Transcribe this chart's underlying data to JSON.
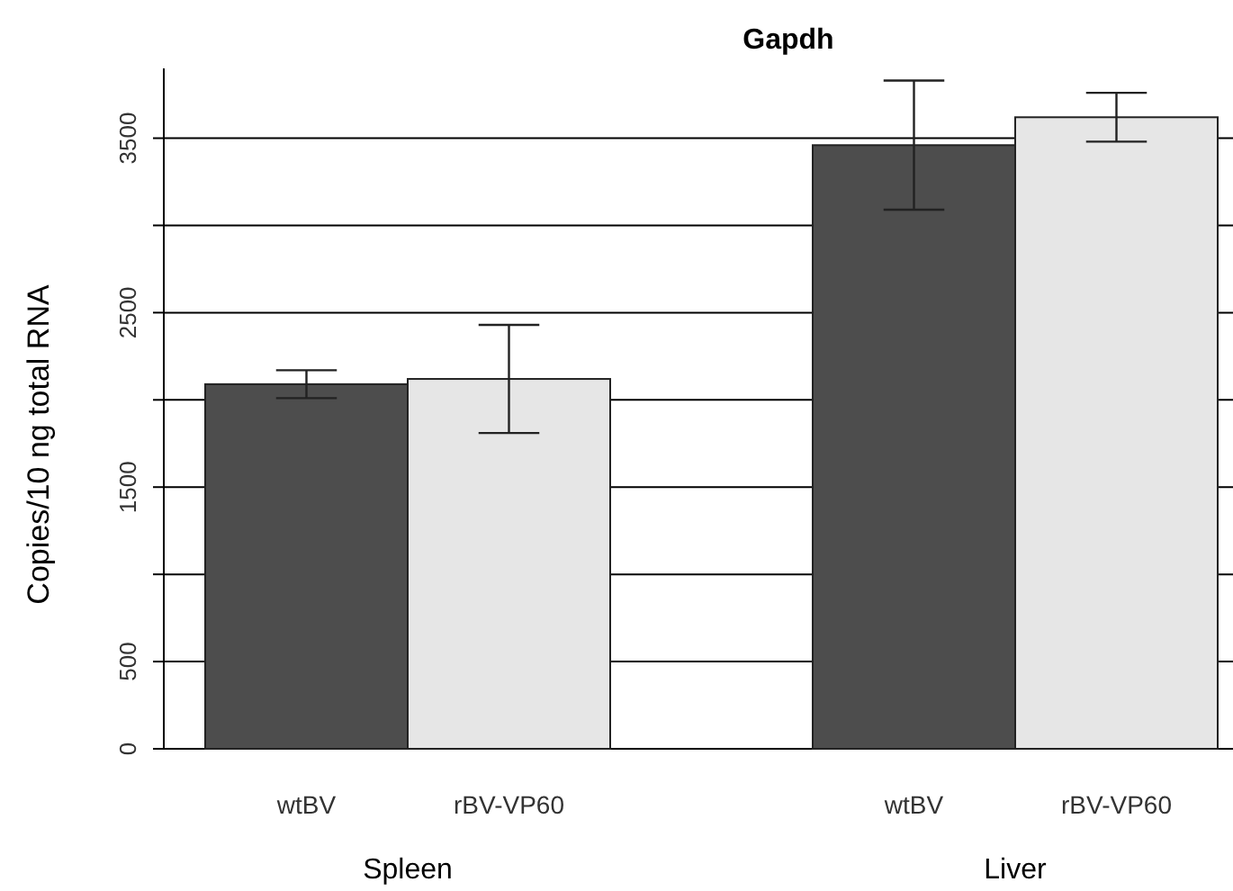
{
  "chart_data": {
    "type": "bar",
    "title": "Gapdh",
    "ylabel": "Copies/10 ng total RNA",
    "categories": [
      "wtBV",
      "rBV-VP60",
      null,
      "wtBV",
      "rBV-VP60"
    ],
    "values": [
      2090,
      2120,
      null,
      3460,
      3620
    ],
    "colors": [
      "#4d4d4d",
      "#e6e6e6",
      null,
      "#4d4d4d",
      "#e6e6e6"
    ],
    "errors": [
      80,
      310,
      null,
      370,
      140
    ],
    "ylim": [
      0,
      3900
    ],
    "yticks": [
      0,
      500,
      {
        "value": 1000,
        "label": null
      },
      1500,
      {
        "value": 2000,
        "label": null
      },
      2500,
      {
        "value": 3000,
        "label": null
      },
      3500
    ],
    "grid": "y",
    "annotations": [
      "Spleen",
      "Liver"
    ]
  }
}
